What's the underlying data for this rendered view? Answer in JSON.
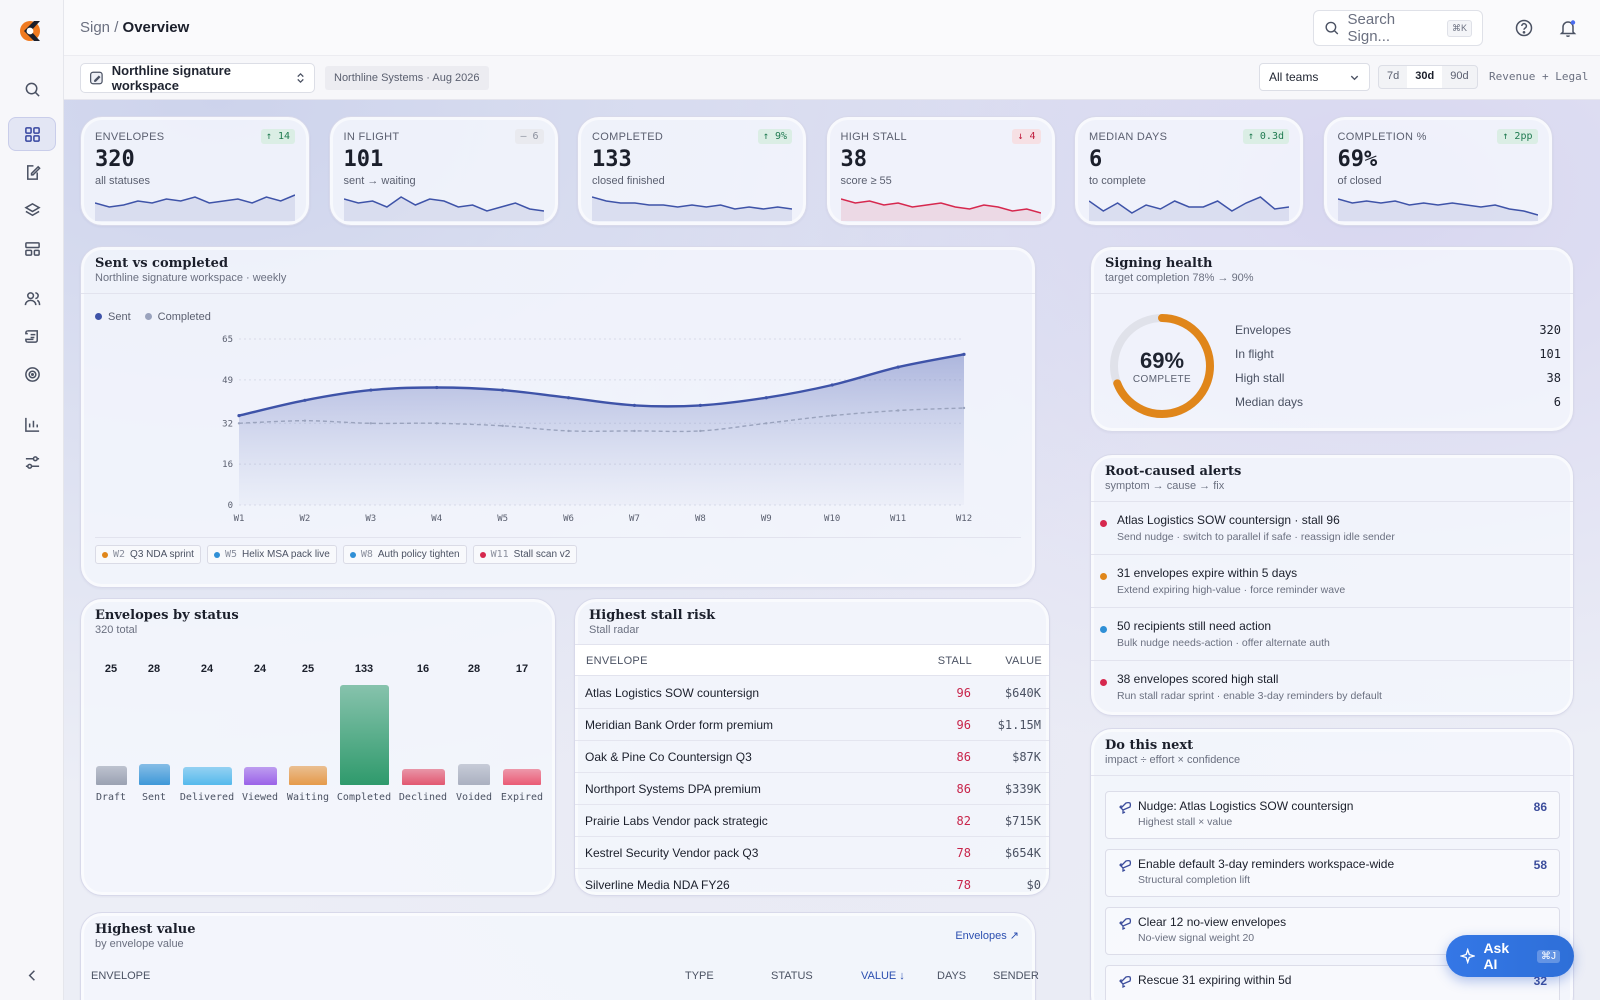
{
  "breadcrumb": {
    "root": "Sign",
    "current": "Overview"
  },
  "search": {
    "placeholder": "Search Sign...",
    "shortcut": "⌘K"
  },
  "workspace": {
    "name": "Northline signature workspace",
    "tag": "Northline Systems · Aug 2026"
  },
  "filters": {
    "team": "All teams",
    "ranges": [
      "7d",
      "30d",
      "90d"
    ],
    "selected_range": "30d",
    "scope": "Revenue + Legal"
  },
  "kpis": [
    {
      "label": "ENVELOPES",
      "value": "320",
      "desc": "all statuses",
      "delta": "↑ 14",
      "trend": "up"
    },
    {
      "label": "IN FLIGHT",
      "value": "101",
      "desc": "sent → waiting",
      "delta": "– 6",
      "trend": "flat"
    },
    {
      "label": "COMPLETED",
      "value": "133",
      "desc": "closed finished",
      "delta": "↑ 9%",
      "trend": "up"
    },
    {
      "label": "HIGH STALL",
      "value": "38",
      "desc": "score ≥ 55",
      "delta": "↓ 4",
      "trend": "down"
    },
    {
      "label": "MEDIAN DAYS",
      "value": "6",
      "desc": "to complete",
      "delta": "↑ 0.3d",
      "trend": "up"
    },
    {
      "label": "COMPLETION %",
      "value": "69%",
      "desc": "of closed",
      "delta": "↑ 2pp",
      "trend": "up"
    }
  ],
  "sent_vs_completed": {
    "title": "Sent vs completed",
    "subtitle": "Northline signature workspace · weekly",
    "legend": [
      "Sent",
      "Completed"
    ],
    "markers": [
      {
        "week": "W2",
        "label": "Q3 NDA sprint",
        "color": "#e0861a"
      },
      {
        "week": "W5",
        "label": "Helix MSA pack live",
        "color": "#2f8fd6"
      },
      {
        "week": "W8",
        "label": "Auth policy tighten",
        "color": "#2f8fd6"
      },
      {
        "week": "W11",
        "label": "Stall scan v2",
        "color": "#d6284e"
      }
    ]
  },
  "chart_data": {
    "type": "area",
    "title": "Sent vs completed",
    "x": [
      "W1",
      "W2",
      "W3",
      "W4",
      "W5",
      "W6",
      "W7",
      "W8",
      "W9",
      "W10",
      "W11",
      "W12"
    ],
    "yticks": [
      0,
      16,
      32,
      49,
      65
    ],
    "ylim": [
      0,
      65
    ],
    "series": [
      {
        "name": "Sent",
        "values": [
          35,
          41,
          45,
          46,
          45,
          42,
          39,
          39,
          42,
          47,
          54,
          59
        ],
        "color": "#3e53a8"
      },
      {
        "name": "Completed",
        "values": [
          32,
          33,
          32,
          32,
          31,
          29,
          29,
          29,
          32,
          35,
          37,
          38
        ],
        "color": "#9aa3bd"
      }
    ]
  },
  "signing_health": {
    "title": "Signing health",
    "subtitle": "target completion 78% → 90%",
    "percent_label": "69%",
    "percent_value": 69,
    "center_label": "COMPLETE",
    "rows": [
      {
        "label": "Envelopes",
        "value": "320"
      },
      {
        "label": "In flight",
        "value": "101"
      },
      {
        "label": "High stall",
        "value": "38"
      },
      {
        "label": "Median days",
        "value": "6"
      }
    ]
  },
  "alerts": {
    "title": "Root-caused alerts",
    "subtitle": "symptom → cause → fix",
    "items": [
      {
        "title": "Atlas Logistics SOW countersign · stall 96",
        "fix": "Send nudge · switch to parallel if safe · reassign idle sender",
        "color": "#d6284e"
      },
      {
        "title": "31 envelopes expire within 5 days",
        "fix": "Extend expiring high-value · force reminder wave",
        "color": "#e0861a"
      },
      {
        "title": "50 recipients still need action",
        "fix": "Bulk nudge needs-action · offer alternate auth",
        "color": "#2f8fd6"
      },
      {
        "title": "38 envelopes scored high stall",
        "fix": "Run stall radar sprint · enable 3-day reminders by default",
        "color": "#d6284e"
      }
    ]
  },
  "next": {
    "title": "Do this next",
    "subtitle": "impact ÷ effort × confidence",
    "items": [
      {
        "title": "Nudge: Atlas Logistics SOW countersign",
        "sub": "Highest stall × value",
        "score": "86"
      },
      {
        "title": "Enable default 3-day reminders workspace-wide",
        "sub": "Structural completion lift",
        "score": "58"
      },
      {
        "title": "Clear 12 no-view envelopes",
        "sub": "No-view signal weight 20",
        "score": ""
      },
      {
        "title": "Rescue 31 expiring within 5d",
        "sub": "",
        "score": "32"
      }
    ]
  },
  "status": {
    "title": "Envelopes by status",
    "subtitle": "320 total",
    "items": [
      {
        "label": "Draft",
        "count": 25,
        "color": "#9aa1b2"
      },
      {
        "label": "Sent",
        "count": 28,
        "color": "#3e98d8"
      },
      {
        "label": "Delivered",
        "count": 24,
        "color": "#55b9ec"
      },
      {
        "label": "Viewed",
        "count": 24,
        "color": "#9a62e8"
      },
      {
        "label": "Waiting",
        "count": 25,
        "color": "#e59a4a"
      },
      {
        "label": "Completed",
        "count": 133,
        "color": "#2f9a6c"
      },
      {
        "label": "Declined",
        "count": 16,
        "color": "#e25770"
      },
      {
        "label": "Voided",
        "count": 28,
        "color": "#aab0c0"
      },
      {
        "label": "Expired",
        "count": 17,
        "color": "#ea5a74"
      }
    ]
  },
  "stall": {
    "title": "Highest stall risk",
    "subtitle": "Stall radar",
    "columns": [
      "ENVELOPE",
      "STALL",
      "VALUE"
    ],
    "rows": [
      {
        "envelope": "Atlas Logistics SOW countersign",
        "stall": "96",
        "value": "$640K"
      },
      {
        "envelope": "Meridian Bank Order form premium",
        "stall": "96",
        "value": "$1.15M"
      },
      {
        "envelope": "Oak & Pine Co Countersign Q3",
        "stall": "86",
        "value": "$87K"
      },
      {
        "envelope": "Northport Systems DPA premium",
        "stall": "86",
        "value": "$339K"
      },
      {
        "envelope": "Prairie Labs Vendor pack strategic",
        "stall": "82",
        "value": "$715K"
      },
      {
        "envelope": "Kestrel Security Vendor pack Q3",
        "stall": "78",
        "value": "$654K"
      },
      {
        "envelope": "Silverline Media NDA FY26",
        "stall": "78",
        "value": "$0"
      }
    ]
  },
  "highest_value": {
    "title": "Highest value",
    "subtitle": "by envelope value",
    "link": "Envelopes ↗",
    "columns": [
      "ENVELOPE",
      "TYPE",
      "STATUS",
      "VALUE ↓",
      "DAYS",
      "SENDER"
    ]
  },
  "ask_ai": {
    "label": "Ask AI",
    "shortcut": "⌘J"
  }
}
